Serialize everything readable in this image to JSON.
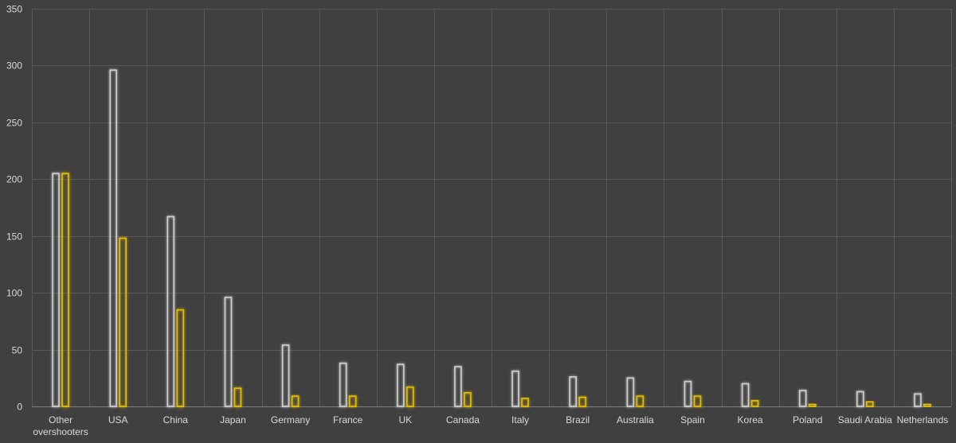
{
  "chart_data": {
    "type": "bar",
    "categories": [
      "Other overshooters",
      "USA",
      "China",
      "Japan",
      "Germany",
      "France",
      "UK",
      "Canada",
      "Italy",
      "Brazil",
      "Australia",
      "Spain",
      "Korea",
      "Poland",
      "Saudi Arabia",
      "Netherlands"
    ],
    "category_lines": [
      [
        "Other",
        "overshooters"
      ],
      [
        "USA"
      ],
      [
        "China"
      ],
      [
        "Japan"
      ],
      [
        "Germany"
      ],
      [
        "France"
      ],
      [
        "UK"
      ],
      [
        "Canada"
      ],
      [
        "Italy"
      ],
      [
        "Brazil"
      ],
      [
        "Australia"
      ],
      [
        "Spain"
      ],
      [
        "Korea"
      ],
      [
        "Poland"
      ],
      [
        "Saudi Arabia"
      ],
      [
        "Netherlands"
      ]
    ],
    "series": [
      {
        "values": [
          205,
          296,
          167,
          96,
          54,
          38,
          37,
          35,
          31,
          26,
          25,
          22,
          20,
          14,
          13,
          11
        ],
        "color": "#d0d0d0",
        "glow": "#ffffff"
      },
      {
        "values": [
          205,
          148,
          85,
          16,
          9,
          9,
          17,
          12,
          7,
          8,
          9,
          9,
          5,
          2,
          4,
          2
        ],
        "color": "#e6c000",
        "glow": "#ffd000"
      }
    ],
    "ylim": [
      0,
      350
    ],
    "yticks": [
      0,
      50,
      100,
      150,
      200,
      250,
      300,
      350
    ],
    "grid": true,
    "title": "",
    "xlabel": "",
    "ylabel": "",
    "background": "#404040"
  }
}
